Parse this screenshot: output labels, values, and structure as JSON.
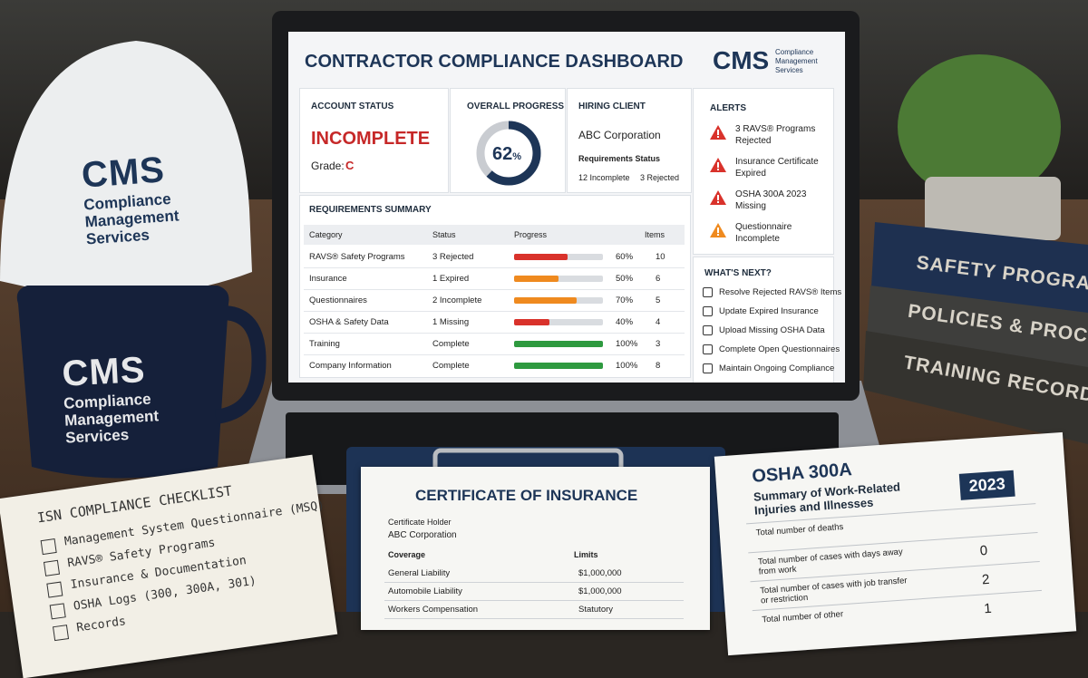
{
  "helmet": {
    "logo": "CMS",
    "lines": [
      "Compliance",
      "Management",
      "Services"
    ]
  },
  "mug": {
    "logo": "CMS",
    "lines": [
      "Compliance",
      "Management",
      "Services"
    ]
  },
  "binders": [
    "SAFETY PROGRAMS",
    "POLICIES & PROCEDURES",
    "TRAINING RECORDS"
  ],
  "dashboard": {
    "title": "CONTRACTOR COMPLIANCE DASHBOARD",
    "logo": {
      "mark": "CMS",
      "lines": [
        "Compliance",
        "Management",
        "Services"
      ]
    },
    "account_status": {
      "heading": "ACCOUNT STATUS",
      "status": "INCOMPLETE",
      "grade_label": "Grade:",
      "grade": "C"
    },
    "overall_progress": {
      "heading": "OVERALL PROGRESS",
      "percent": 62,
      "unit": "%"
    },
    "hiring_client": {
      "heading": "HIRING CLIENT",
      "name": "ABC Corporation",
      "requirements_heading": "Requirements Status",
      "incomplete": "12 Incomplete",
      "rejected": "3 Rejected"
    },
    "alerts": {
      "heading": "ALERTS",
      "items": [
        {
          "text": "3 RAVS® Programs Rejected",
          "color": "#d9322b"
        },
        {
          "text": "Insurance Certificate Expired",
          "color": "#d9322b"
        },
        {
          "text": "OSHA 300A 2023 Missing",
          "color": "#d9322b"
        },
        {
          "text": "Questionnaire Incomplete",
          "color": "#ef8a1f"
        }
      ]
    },
    "whats_next": {
      "heading": "WHAT'S NEXT?",
      "items": [
        "Resolve Rejected RAVS® Items",
        "Update Expired Insurance",
        "Upload Missing OSHA Data",
        "Complete Open Questionnaires",
        "Maintain Ongoing Compliance"
      ]
    },
    "requirements_summary": {
      "heading": "REQUIREMENTS SUMMARY",
      "columns": [
        "Category",
        "Status",
        "Progress",
        "Items"
      ],
      "rows": [
        {
          "category": "RAVS® Safety Programs",
          "status": "3 Rejected",
          "progress": 60,
          "progress_label": "60%",
          "items": 10,
          "color": "#d9322b"
        },
        {
          "category": "Insurance",
          "status": "1 Expired",
          "progress": 50,
          "progress_label": "50%",
          "items": 6,
          "color": "#ef8a1f"
        },
        {
          "category": "Questionnaires",
          "status": "2 Incomplete",
          "progress": 70,
          "progress_label": "70%",
          "items": 5,
          "color": "#ef8a1f"
        },
        {
          "category": "OSHA & Safety Data",
          "status": "1 Missing",
          "progress": 40,
          "progress_label": "40%",
          "items": 4,
          "color": "#d9322b"
        },
        {
          "category": "Training",
          "status": "Complete",
          "progress": 100,
          "progress_label": "100%",
          "items": 3,
          "color": "#2e9a3f"
        },
        {
          "category": "Company Information",
          "status": "Complete",
          "progress": 100,
          "progress_label": "100%",
          "items": 8,
          "color": "#2e9a3f"
        }
      ]
    }
  },
  "checklist": {
    "title": "ISN COMPLIANCE CHECKLIST",
    "items": [
      "Management System Questionnaire (MSQ)",
      "RAVS® Safety Programs",
      "Insurance & Documentation",
      "OSHA Logs (300, 300A, 301)",
      "Records"
    ]
  },
  "certificate": {
    "title": "CERTIFICATE OF INSURANCE",
    "holder_label": "Certificate Holder",
    "holder": "ABC Corporation",
    "columns": [
      "Coverage",
      "Limits"
    ],
    "rows": [
      [
        "General Liability",
        "$1,000,000"
      ],
      [
        "Automobile Liability",
        "$1,000,000"
      ],
      [
        "Workers Compensation",
        "Statutory"
      ]
    ]
  },
  "osha": {
    "title": "OSHA 300A",
    "subtitle": "Summary of Work-Related Injuries and Illnesses",
    "year": "2023",
    "rows": [
      {
        "label": "Total number of deaths"
      },
      {
        "label": "Total number of cases with days away from work",
        "value": 0
      },
      {
        "label": "Total number of cases with job transfer or restriction",
        "value": 2
      },
      {
        "label": "Total number of other",
        "value": 1
      }
    ]
  }
}
